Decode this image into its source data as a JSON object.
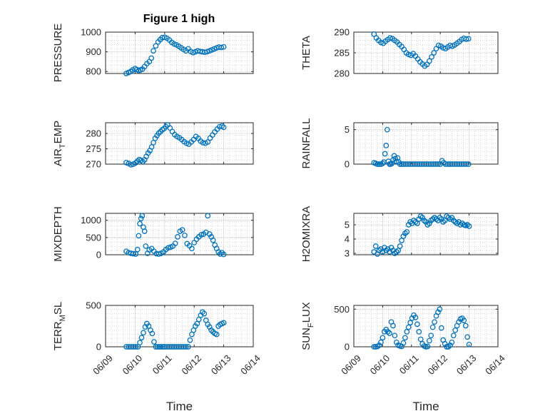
{
  "figure": {
    "title": "Figure 1 high"
  },
  "style": {
    "marker_color": "#0072BD",
    "axis_color": "#262626",
    "grid_color": "#bdbdbd"
  },
  "chart_data": [
    {
      "id": "pressure",
      "type": "scatter",
      "title": "Figure 1 high",
      "ylabel": "PRESSURE",
      "ylabel_sub": "",
      "ylabel_tail": "",
      "xlabel": "",
      "xlim": [
        0,
        5
      ],
      "x_tick_values": [
        0,
        1,
        2,
        3,
        4,
        5
      ],
      "x_tick_labels": [],
      "ylim": [
        790,
        1000
      ],
      "yticks": [
        800,
        900,
        1000
      ],
      "ytick_labels": [
        "800",
        "900",
        "1000"
      ],
      "grid": true,
      "minor_grid": true,
      "series": [
        {
          "x": [
            0.7,
            0.78,
            0.85,
            0.92,
            1.0,
            1.06,
            1.12,
            1.18,
            1.25,
            1.32,
            1.4,
            1.48,
            1.55,
            1.62,
            1.7,
            1.78,
            1.85,
            1.92,
            2.0,
            2.08,
            2.16,
            2.24,
            2.32,
            2.4,
            2.48,
            2.56,
            2.64,
            2.72,
            2.8,
            2.88,
            2.96,
            3.04,
            3.12,
            3.2,
            3.28,
            3.36,
            3.44,
            3.52,
            3.6,
            3.68,
            3.76,
            3.84,
            3.92,
            4.0
          ],
          "y": [
            790,
            795,
            800,
            808,
            815,
            810,
            805,
            808,
            812,
            825,
            840,
            850,
            868,
            905,
            930,
            950,
            962,
            972,
            974,
            969,
            960,
            948,
            940,
            935,
            928,
            920,
            912,
            905,
            915,
            902,
            896,
            900,
            905,
            902,
            900,
            898,
            901,
            905,
            910,
            915,
            920,
            924,
            922,
            925
          ]
        }
      ]
    },
    {
      "id": "theta",
      "type": "scatter",
      "title": "",
      "ylabel": "THETA",
      "ylabel_sub": "",
      "ylabel_tail": "",
      "xlabel": "",
      "xlim": [
        0,
        5
      ],
      "x_tick_values": [
        0,
        1,
        2,
        3,
        4,
        5
      ],
      "x_tick_labels": [],
      "ylim": [
        280,
        290
      ],
      "yticks": [
        280,
        285,
        290
      ],
      "ytick_labels": [
        "280",
        "285",
        "290"
      ],
      "grid": true,
      "minor_grid": true,
      "series": [
        {
          "x": [
            0.7,
            0.78,
            0.86,
            0.94,
            1.02,
            1.1,
            1.18,
            1.26,
            1.34,
            1.42,
            1.5,
            1.58,
            1.66,
            1.74,
            1.82,
            1.9,
            1.98,
            2.06,
            2.14,
            2.22,
            2.3,
            2.38,
            2.46,
            2.54,
            2.62,
            2.7,
            2.78,
            2.86,
            2.94,
            3.02,
            3.1,
            3.18,
            3.26,
            3.34,
            3.42,
            3.5,
            3.58,
            3.66,
            3.74,
            3.82,
            3.9,
            3.98
          ],
          "y": [
            289.5,
            288.6,
            288.0,
            287.5,
            287.3,
            287.8,
            288.2,
            288.6,
            288.4,
            288.0,
            287.6,
            287.0,
            286.5,
            285.8,
            285.0,
            284.6,
            284.4,
            284.8,
            284.2,
            283.5,
            282.8,
            282.3,
            281.8,
            282.2,
            283.0,
            284.0,
            285.0,
            286.0,
            286.8,
            286.6,
            286.2,
            286.0,
            286.4,
            286.8,
            286.6,
            286.9,
            287.3,
            287.7,
            288.2,
            288.5,
            288.3,
            288.4
          ]
        }
      ]
    },
    {
      "id": "air_temp",
      "type": "scatter",
      "title": "",
      "ylabel": "AIR",
      "ylabel_sub": "T",
      "ylabel_tail": "EMP",
      "xlabel": "",
      "xlim": [
        0,
        5
      ],
      "x_tick_values": [
        0,
        1,
        2,
        3,
        4,
        5
      ],
      "x_tick_labels": [],
      "ylim": [
        270,
        283.5
      ],
      "yticks": [
        270,
        275,
        280
      ],
      "ytick_labels": [
        "270",
        "275",
        "280"
      ],
      "grid": true,
      "minor_grid": true,
      "series": [
        {
          "x": [
            0.7,
            0.78,
            0.86,
            0.94,
            1.02,
            1.08,
            1.14,
            1.2,
            1.26,
            1.32,
            1.38,
            1.44,
            1.5,
            1.56,
            1.62,
            1.68,
            1.74,
            1.8,
            1.86,
            1.92,
            1.98,
            2.04,
            2.1,
            2.18,
            2.26,
            2.34,
            2.42,
            2.5,
            2.58,
            2.66,
            2.74,
            2.82,
            2.9,
            2.98,
            3.06,
            3.14,
            3.22,
            3.3,
            3.38,
            3.46,
            3.54,
            3.62,
            3.7,
            3.78,
            3.86,
            3.94,
            4.0
          ],
          "y": [
            270.5,
            270.2,
            269.8,
            270.0,
            270.4,
            271.0,
            271.5,
            271.2,
            270.8,
            271.4,
            272.5,
            273.6,
            274.4,
            275.6,
            277.0,
            278.4,
            279.3,
            280.1,
            280.6,
            281.2,
            281.6,
            282.2,
            282.8,
            281.8,
            280.6,
            279.6,
            279.0,
            278.6,
            278.0,
            277.3,
            276.8,
            276.5,
            277.2,
            278.0,
            279.0,
            278.4,
            277.5,
            277.0,
            276.8,
            277.2,
            278.5,
            279.5,
            280.5,
            281.4,
            282.2,
            282.4,
            282.0
          ]
        }
      ]
    },
    {
      "id": "rainfall",
      "type": "scatter",
      "title": "",
      "ylabel": "RAINFALL",
      "ylabel_sub": "",
      "ylabel_tail": "",
      "xlabel": "",
      "xlim": [
        0,
        5
      ],
      "x_tick_values": [
        0,
        1,
        2,
        3,
        4,
        5
      ],
      "x_tick_labels": [],
      "ylim": [
        0,
        6
      ],
      "yticks": [
        0,
        5
      ],
      "ytick_labels": [
        "0",
        "5"
      ],
      "grid": true,
      "minor_grid": true,
      "series": [
        {
          "x": [
            0.7,
            0.76,
            0.82,
            0.88,
            0.94,
            1.0,
            1.04,
            1.08,
            1.12,
            1.16,
            1.2,
            1.24,
            1.28,
            1.32,
            1.36,
            1.4,
            1.44,
            1.48,
            1.52,
            1.56,
            1.6,
            1.66,
            1.72,
            1.8,
            1.88,
            1.96,
            2.04,
            2.12,
            2.2,
            2.28,
            2.36,
            2.44,
            2.52,
            2.6,
            2.68,
            2.76,
            2.84,
            2.92,
            3.0,
            3.06,
            3.12,
            3.18,
            3.26,
            3.34,
            3.42,
            3.5,
            3.58,
            3.66,
            3.74,
            3.82,
            3.9,
            3.98
          ],
          "y": [
            0.2,
            0.1,
            0,
            0,
            0,
            0.1,
            0.3,
            1.5,
            2.7,
            5.0,
            0.4,
            0,
            0,
            0.1,
            0.6,
            1.2,
            0.8,
            0.4,
            0.9,
            0.3,
            0,
            0,
            0,
            0,
            0,
            0,
            0,
            0,
            0,
            0,
            0,
            0,
            0,
            0,
            0,
            0,
            0,
            0,
            0,
            0.5,
            0.2,
            0,
            0,
            0,
            0,
            0,
            0,
            0,
            0,
            0,
            0,
            0
          ]
        }
      ]
    },
    {
      "id": "mixdepth",
      "type": "scatter",
      "title": "",
      "ylabel": "MIXDEPTH",
      "ylabel_sub": "",
      "ylabel_tail": "",
      "xlabel": "",
      "xlim": [
        0,
        5
      ],
      "x_tick_values": [
        0,
        1,
        2,
        3,
        4,
        5
      ],
      "x_tick_labels": [],
      "ylim": [
        0,
        1200
      ],
      "yticks": [
        0,
        500,
        1000
      ],
      "ytick_labels": [
        "0",
        "500",
        "1000"
      ],
      "grid": true,
      "minor_grid": true,
      "series": [
        {
          "x": [
            0.7,
            0.78,
            0.86,
            0.94,
            1.02,
            1.08,
            1.12,
            1.16,
            1.2,
            1.24,
            1.28,
            1.32,
            1.36,
            1.42,
            1.48,
            1.56,
            1.64,
            1.72,
            1.8,
            1.88,
            1.96,
            2.04,
            2.12,
            2.2,
            2.28,
            2.36,
            2.44,
            2.52,
            2.6,
            2.68,
            2.76,
            2.84,
            2.92,
            3.0,
            3.08,
            3.16,
            3.24,
            3.32,
            3.4,
            3.46,
            3.52,
            3.58,
            3.64,
            3.7,
            3.76,
            3.82,
            3.88,
            3.94,
            4.0
          ],
          "y": [
            100,
            60,
            40,
            30,
            20,
            150,
            550,
            900,
            1050,
            1130,
            800,
            680,
            250,
            40,
            140,
            180,
            100,
            30,
            20,
            40,
            80,
            150,
            200,
            220,
            250,
            330,
            520,
            680,
            720,
            560,
            320,
            260,
            180,
            350,
            450,
            520,
            580,
            600,
            650,
            1130,
            600,
            520,
            420,
            280,
            180,
            80,
            20,
            60,
            10
          ]
        }
      ]
    },
    {
      "id": "h2omixra",
      "type": "scatter",
      "title": "",
      "ylabel": "H2OMIXRA",
      "ylabel_sub": "",
      "ylabel_tail": "",
      "xlabel": "",
      "xlim": [
        0,
        5
      ],
      "x_tick_values": [
        0,
        1,
        2,
        3,
        4,
        5
      ],
      "x_tick_labels": [],
      "ylim": [
        2.9,
        5.8
      ],
      "yticks": [
        3,
        4,
        5
      ],
      "ytick_labels": [
        "3",
        "4",
        "5"
      ],
      "grid": true,
      "minor_grid": true,
      "series": [
        {
          "x": [
            0.7,
            0.76,
            0.82,
            0.88,
            0.94,
            1.0,
            1.06,
            1.12,
            1.18,
            1.24,
            1.3,
            1.36,
            1.42,
            1.48,
            1.54,
            1.6,
            1.66,
            1.72,
            1.78,
            1.84,
            1.9,
            1.96,
            2.02,
            2.08,
            2.14,
            2.2,
            2.26,
            2.32,
            2.38,
            2.44,
            2.5,
            2.56,
            2.62,
            2.68,
            2.74,
            2.8,
            2.86,
            2.92,
            2.98,
            3.04,
            3.1,
            3.16,
            3.22,
            3.28,
            3.34,
            3.4,
            3.46,
            3.52,
            3.58,
            3.64,
            3.7,
            3.76,
            3.82,
            3.88,
            3.94,
            4.0
          ],
          "y": [
            3.1,
            3.5,
            2.95,
            3.2,
            3.3,
            3.1,
            3.4,
            3.2,
            3.3,
            3.1,
            3.4,
            3.2,
            3.0,
            3.1,
            3.2,
            3.5,
            3.9,
            4.2,
            4.4,
            4.5,
            5.0,
            5.2,
            5.1,
            5.3,
            5.2,
            5.1,
            5.4,
            5.6,
            5.5,
            5.3,
            5.2,
            5.0,
            5.1,
            5.3,
            5.4,
            5.5,
            5.4,
            5.3,
            5.5,
            5.4,
            5.2,
            5.3,
            5.6,
            5.5,
            5.4,
            5.5,
            5.3,
            5.2,
            5.1,
            5.2,
            5.0,
            5.1,
            5.0,
            4.95,
            5.0,
            4.9
          ]
        }
      ]
    },
    {
      "id": "terr_msl",
      "type": "scatter",
      "title": "",
      "ylabel": "TERR",
      "ylabel_sub": "M",
      "ylabel_tail": "SL",
      "xlabel": "Time",
      "xlim": [
        0,
        5
      ],
      "x_tick_values": [
        0,
        1,
        2,
        3,
        4,
        5
      ],
      "x_tick_labels": [
        "06/09",
        "06/10",
        "06/11",
        "06/12",
        "06/13",
        "06/14"
      ],
      "ylim": [
        0,
        500
      ],
      "yticks": [
        0,
        500
      ],
      "ytick_labels": [
        "0",
        "500"
      ],
      "grid": true,
      "minor_grid": true,
      "series": [
        {
          "x": [
            0.7,
            0.78,
            0.86,
            0.94,
            1.02,
            1.1,
            1.16,
            1.22,
            1.28,
            1.34,
            1.4,
            1.46,
            1.52,
            1.58,
            1.64,
            1.7,
            1.76,
            1.82,
            1.88,
            1.94,
            2.0,
            2.08,
            2.16,
            2.24,
            2.32,
            2.4,
            2.48,
            2.56,
            2.64,
            2.72,
            2.8,
            2.86,
            2.92,
            2.98,
            3.04,
            3.1,
            3.16,
            3.22,
            3.28,
            3.34,
            3.4,
            3.46,
            3.52,
            3.58,
            3.64,
            3.7,
            3.76,
            3.82,
            3.88,
            3.94,
            4.0
          ],
          "y": [
            0,
            0,
            0,
            0,
            0,
            0,
            50,
            110,
            170,
            240,
            280,
            250,
            200,
            160,
            60,
            0,
            0,
            0,
            0,
            0,
            0,
            0,
            0,
            0,
            0,
            0,
            0,
            0,
            0,
            0,
            0,
            80,
            150,
            200,
            250,
            280,
            330,
            380,
            420,
            400,
            320,
            270,
            240,
            200,
            180,
            160,
            150,
            250,
            270,
            280,
            290
          ]
        }
      ]
    },
    {
      "id": "sun_flux",
      "type": "scatter",
      "title": "",
      "ylabel": "SUN",
      "ylabel_sub": "F",
      "ylabel_tail": "LUX",
      "xlabel": "Time",
      "xlim": [
        0,
        5
      ],
      "x_tick_values": [
        0,
        1,
        2,
        3,
        4,
        5
      ],
      "x_tick_labels": [
        "06/09",
        "06/10",
        "06/11",
        "06/12",
        "06/13",
        "06/14"
      ],
      "ylim": [
        0,
        550
      ],
      "yticks": [
        0,
        500
      ],
      "ytick_labels": [
        "0",
        "500"
      ],
      "grid": true,
      "minor_grid": true,
      "series": [
        {
          "x": [
            0.7,
            0.76,
            0.82,
            0.88,
            0.94,
            1.0,
            1.06,
            1.12,
            1.18,
            1.24,
            1.3,
            1.36,
            1.42,
            1.48,
            1.54,
            1.6,
            1.66,
            1.72,
            1.78,
            1.84,
            1.9,
            1.96,
            2.02,
            2.08,
            2.14,
            2.2,
            2.26,
            2.32,
            2.38,
            2.44,
            2.5,
            2.56,
            2.62,
            2.68,
            2.74,
            2.8,
            2.86,
            2.92,
            2.98,
            3.04,
            3.1,
            3.16,
            3.22,
            3.28,
            3.34,
            3.4,
            3.46,
            3.52,
            3.58,
            3.64,
            3.7,
            3.76,
            3.82,
            3.88,
            3.94,
            4.0
          ],
          "y": [
            0,
            0,
            5,
            20,
            60,
            120,
            200,
            230,
            200,
            180,
            330,
            280,
            150,
            60,
            20,
            10,
            5,
            50,
            120,
            200,
            260,
            320,
            380,
            420,
            390,
            300,
            200,
            100,
            40,
            10,
            0,
            5,
            80,
            150,
            260,
            330,
            410,
            460,
            500,
            250,
            90,
            40,
            0,
            0,
            20,
            60,
            150,
            220,
            280,
            330,
            370,
            380,
            350,
            280,
            130,
            30
          ]
        }
      ]
    }
  ]
}
